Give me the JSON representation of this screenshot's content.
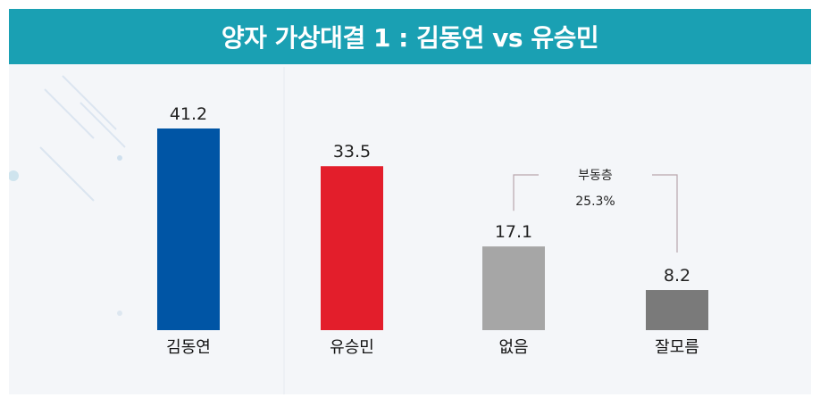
{
  "title": "양자 가상대결 1 : 김동연 vs 유승민",
  "chart_data": {
    "type": "bar",
    "title": "양자 가상대결 1 : 김동연 vs 유승민",
    "categories": [
      "김동연",
      "유승민",
      "없음",
      "잘모름"
    ],
    "values": [
      41.2,
      33.5,
      17.1,
      8.2
    ],
    "value_labels": [
      "41.2",
      "33.5",
      "17.1",
      "8.2"
    ],
    "colors": [
      "#0055a5",
      "#e31e2b",
      "#a6a6a6",
      "#7a7a7a"
    ],
    "ylim": [
      0,
      50
    ],
    "grid": false,
    "legend": "none",
    "annotation": {
      "label": "부동층",
      "value": "25.3%",
      "spans": [
        "없음",
        "잘모름"
      ]
    }
  },
  "colors": {
    "title_bar": "#1aa0b3",
    "background": "#f4f6f9"
  }
}
